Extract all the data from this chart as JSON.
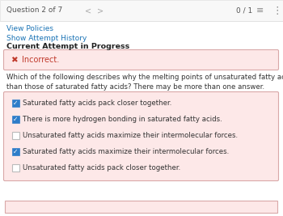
{
  "title_text": "Question 2 of 7",
  "score": "0 / 1",
  "link1": "View Policies",
  "link2": "Show Attempt History",
  "current_attempt": "Current Attempt in Progress",
  "incorrect_text": "Incorrect.",
  "question_line1": "Which of the following describes why the melting points of unsaturated fatty acids are lower",
  "question_line2": "than those of saturated fatty acids? There may be more than one answer.",
  "choices": [
    {
      "text": "Saturated fatty acids pack closer together.",
      "checked": true
    },
    {
      "text": "There is more hydrogen bonding in saturated fatty acids.",
      "checked": true
    },
    {
      "text": "Unsaturated fatty acids maximize their intermolecular forces.",
      "checked": false
    },
    {
      "text": "Saturated fatty acids maximize their intermolecular forces.",
      "checked": true
    },
    {
      "text": "Unsaturated fatty acids pack closer together.",
      "checked": false
    }
  ],
  "bg_color": "#ffffff",
  "header_bg": "#f8f8f8",
  "header_border": "#e0e0e0",
  "incorrect_bg": "#fde8e8",
  "incorrect_border": "#d9a8a8",
  "incorrect_text_color": "#c0392b",
  "choices_bg": "#fde8e8",
  "choices_border": "#d9a8a8",
  "link_color": "#1a73b5",
  "header_text_color": "#555555",
  "body_text_color": "#333333",
  "checkbox_checked_color": "#2e7dc9",
  "checkbox_border_color": "#bbbbbb",
  "bottom_strip_bg": "#fde8e8",
  "bottom_strip_border": "#d9a8a8"
}
